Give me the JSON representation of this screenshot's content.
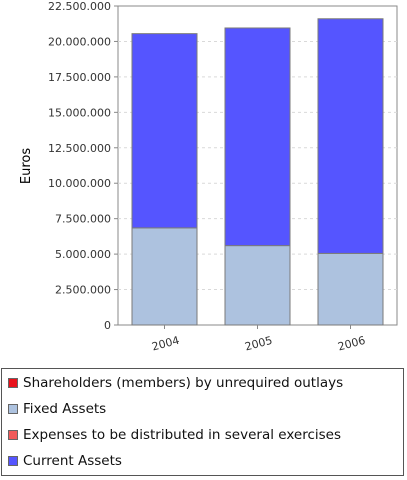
{
  "chart_data": {
    "type": "bar",
    "stacked": true,
    "ylabel": "Euros",
    "ylim": [
      0,
      22500000
    ],
    "yticks": [
      0,
      2500000,
      5000000,
      7500000,
      10000000,
      12500000,
      15000000,
      17500000,
      20000000,
      22500000
    ],
    "ytick_labels": [
      "0",
      "2.500.000",
      "5.000.000",
      "7.500.000",
      "10.000.000",
      "12.500.000",
      "15.000.000",
      "17.500.000",
      "20.000.000",
      "22.500.000"
    ],
    "categories": [
      "2004",
      "2005",
      "2006"
    ],
    "grid": true,
    "legend_position": "bottom",
    "series": [
      {
        "name": "Shareholders (members) by unrequired outlays",
        "color": "#e8111b",
        "values": [
          0,
          0,
          0
        ]
      },
      {
        "name": "Fixed Assets",
        "color": "#adc2df",
        "values": [
          6850000,
          5600000,
          5050000
        ]
      },
      {
        "name": "Expenses to be distributed in several exercises",
        "color": "#f05a5a",
        "values": [
          0,
          0,
          0
        ]
      },
      {
        "name": "Current Assets",
        "color": "#5555ff",
        "values": [
          13700000,
          15350000,
          16550000
        ]
      }
    ]
  }
}
